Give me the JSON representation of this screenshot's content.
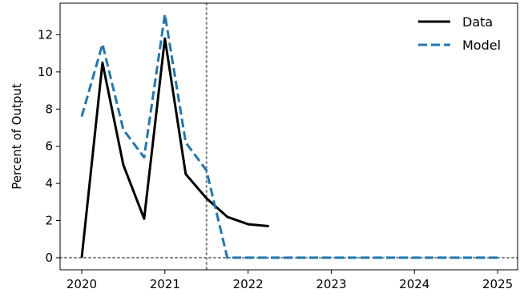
{
  "chart_data": {
    "type": "line",
    "title": "",
    "xlabel": "",
    "ylabel": "Percent of Output",
    "xlim": [
      2019.74,
      2025.24
    ],
    "ylim": [
      -0.65,
      13.7
    ],
    "x_ticks": [
      2020,
      2021,
      2022,
      2023,
      2024,
      2025
    ],
    "x_tick_labels": [
      "2020",
      "2021",
      "2022",
      "2023",
      "2024",
      "2025"
    ],
    "y_ticks": [
      0,
      2,
      4,
      6,
      8,
      10,
      12
    ],
    "y_tick_labels": [
      "0",
      "2",
      "4",
      "6",
      "8",
      "10",
      "12"
    ],
    "grid": false,
    "legend_position": "top-right",
    "reference_lines": [
      {
        "orientation": "horizontal",
        "value": 0,
        "style": "dotted",
        "color": "#808080"
      },
      {
        "orientation": "vertical",
        "value": 2021.5,
        "style": "dotted",
        "color": "#808080"
      }
    ],
    "series": [
      {
        "name": "Data",
        "color": "#000000",
        "style": "solid",
        "points": [
          [
            2020.0,
            0.0
          ],
          [
            2020.25,
            10.5
          ],
          [
            2020.5,
            5.0
          ],
          [
            2020.75,
            2.1
          ],
          [
            2021.0,
            11.8
          ],
          [
            2021.25,
            4.5
          ],
          [
            2021.5,
            3.2
          ],
          [
            2021.75,
            2.2
          ],
          [
            2022.0,
            1.8
          ],
          [
            2022.25,
            1.7
          ]
        ]
      },
      {
        "name": "Model",
        "color": "#1f77b4",
        "style": "dashed",
        "points": [
          [
            2020.0,
            7.6
          ],
          [
            2020.25,
            11.5
          ],
          [
            2020.5,
            6.9
          ],
          [
            2020.75,
            5.4
          ],
          [
            2021.0,
            13.1
          ],
          [
            2021.25,
            6.2
          ],
          [
            2021.5,
            4.7
          ],
          [
            2021.75,
            0.0
          ],
          [
            2022.0,
            0.0
          ],
          [
            2022.25,
            0.0
          ],
          [
            2022.5,
            0.0
          ],
          [
            2022.75,
            0.0
          ],
          [
            2023.0,
            0.0
          ],
          [
            2023.25,
            0.0
          ],
          [
            2023.5,
            0.0
          ],
          [
            2023.75,
            0.0
          ],
          [
            2024.0,
            0.0
          ],
          [
            2024.25,
            0.0
          ],
          [
            2024.5,
            0.0
          ],
          [
            2024.75,
            0.0
          ],
          [
            2025.0,
            0.0
          ]
        ]
      }
    ]
  }
}
